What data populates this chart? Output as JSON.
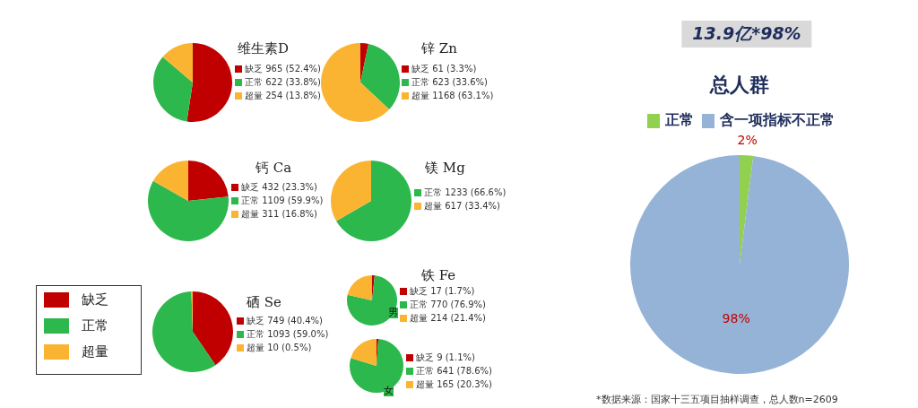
{
  "chart_data": [
    {
      "type": "pie",
      "title": "维生素D",
      "categories": [
        "缺乏 965 (52.4%)",
        "正常 622 (33.8%)",
        "超量 254 (13.8%)"
      ],
      "values": [
        965,
        622,
        254
      ],
      "colors": [
        "#c00000",
        "#2db84d",
        "#fbb432"
      ],
      "legend": "right"
    },
    {
      "type": "pie",
      "title": "锌 Zn",
      "categories": [
        "缺乏 61 (3.3%)",
        "正常 623 (33.6%)",
        "超量 1168 (63.1%)"
      ],
      "values": [
        61,
        623,
        1168
      ],
      "colors": [
        "#c00000",
        "#2db84d",
        "#fbb432"
      ],
      "legend": "right"
    },
    {
      "type": "pie",
      "title": "钙 Ca",
      "categories": [
        "缺乏 432 (23.3%)",
        "正常 1109 (59.9%)",
        "超量 311 (16.8%)"
      ],
      "values": [
        432,
        1109,
        311
      ],
      "colors": [
        "#c00000",
        "#2db84d",
        "#fbb432"
      ],
      "legend": "right"
    },
    {
      "type": "pie",
      "title": "镁 Mg",
      "categories": [
        "正常 1233 (66.6%)",
        "超量 617 (33.4%)"
      ],
      "values": [
        1233,
        617
      ],
      "colors": [
        "#2db84d",
        "#fbb432"
      ],
      "legend": "right"
    },
    {
      "type": "pie",
      "title": "铁 Fe",
      "categories": [
        "缺乏 17 (1.7%)",
        "正常 770 (76.9%)",
        "超量 214 (21.4%)"
      ],
      "values": [
        17,
        770,
        214
      ],
      "colors": [
        "#c00000",
        "#2db84d",
        "#fbb432"
      ],
      "legend": "right",
      "annotations": [
        "男"
      ]
    },
    {
      "type": "pie",
      "title": "硒 Se",
      "categories": [
        "缺乏 749 (40.4%)",
        "正常 1093 (59.0%)",
        "超量 10 (0.5%)"
      ],
      "values": [
        749,
        1093,
        10
      ],
      "colors": [
        "#c00000",
        "#2db84d",
        "#fbb432"
      ],
      "legend": "right"
    },
    {
      "type": "pie",
      "categories": [
        "缺乏 9 (1.1%)",
        "正常 641 (78.6%)",
        "超量 165 (20.3%)"
      ],
      "values": [
        9,
        641,
        165
      ],
      "colors": [
        "#c00000",
        "#2db84d",
        "#fbb432"
      ],
      "legend": "right",
      "annotations": [
        "女"
      ]
    },
    {
      "type": "other",
      "categories": [
        "缺乏",
        "正常",
        "超量"
      ],
      "colors": [
        "#c00000",
        "#2db84d",
        "#fbb432"
      ]
    },
    {
      "type": "pie",
      "title": "总人群",
      "subtitle": "13.9亿*98%",
      "categories": [
        "正常",
        "含一项指标不正常"
      ],
      "values": [
        2,
        98
      ],
      "colors": [
        "#92d050",
        "#95b3d7"
      ],
      "value_labels": [
        "2%",
        "98%"
      ],
      "legend": "top",
      "annotations": [
        "*数据来源：国家十三五项目抽样调查，总人数n=2609"
      ]
    }
  ]
}
